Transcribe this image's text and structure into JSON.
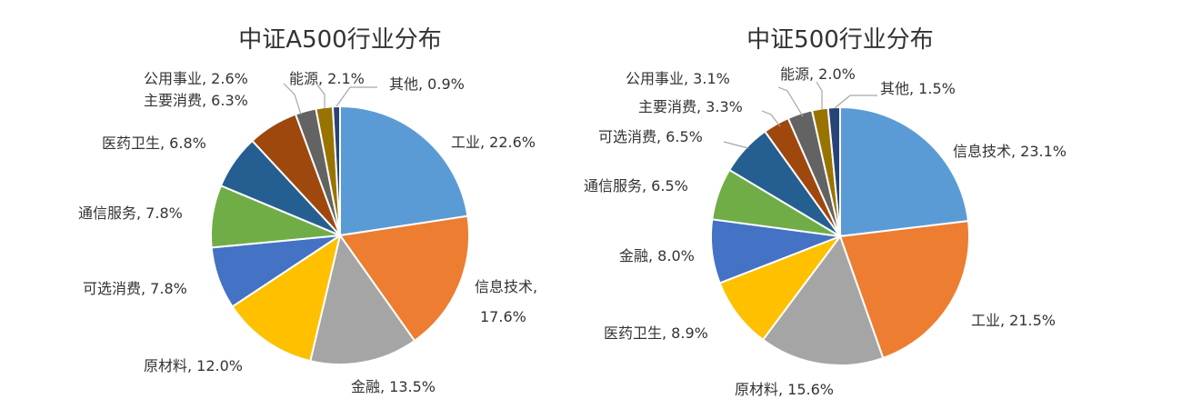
{
  "chart_data": [
    {
      "type": "pie",
      "title": "中证A500行业分布",
      "categories": [
        "工业",
        "信息技术",
        "金融",
        "原材料",
        "可选消费",
        "通信服务",
        "医药卫生",
        "主要消费",
        "公用事业",
        "能源",
        "其他"
      ],
      "values": [
        22.6,
        17.6,
        13.5,
        12.0,
        7.8,
        7.8,
        6.8,
        6.3,
        2.6,
        2.1,
        0.9
      ],
      "labels": [
        "工业, 22.6%",
        "信息技术,",
        "金融, 13.5%",
        "原材料, 12.0%",
        "可选消费, 7.8%",
        "通信服务, 7.8%",
        "医药卫生, 6.8%",
        "主要消费, 6.3%",
        "公用事业, 2.6%",
        "能源, 2.1%",
        "其他, 0.9%"
      ],
      "extra_labels": [
        "17.6%"
      ],
      "colors": [
        "#5b9bd5",
        "#ed7d31",
        "#a5a5a5",
        "#ffc000",
        "#4472c4",
        "#70ad47",
        "#255e91",
        "#9e480e",
        "#636363",
        "#997300",
        "#264478"
      ],
      "start": "12 o'clock",
      "direction": "clockwise",
      "legend": "none"
    },
    {
      "type": "pie",
      "title": "中证500行业分布",
      "categories": [
        "信息技术",
        "工业",
        "原材料",
        "医药卫生",
        "金融",
        "通信服务",
        "可选消费",
        "主要消费",
        "公用事业",
        "能源",
        "其他"
      ],
      "values": [
        23.1,
        21.5,
        15.6,
        8.9,
        8.0,
        6.5,
        6.5,
        3.3,
        3.1,
        2.0,
        1.5
      ],
      "labels": [
        "信息技术, 23.1%",
        "工业, 21.5%",
        "原材料, 15.6%",
        "医药卫生, 8.9%",
        "金融, 8.0%",
        "通信服务, 6.5%",
        "可选消费, 6.5%",
        "主要消费, 3.3%",
        "公用事业, 3.1%",
        "能源, 2.0%",
        "其他, 1.5%"
      ],
      "colors": [
        "#5b9bd5",
        "#ed7d31",
        "#a5a5a5",
        "#ffc000",
        "#4472c4",
        "#70ad47",
        "#255e91",
        "#9e480e",
        "#636363",
        "#997300",
        "#264478"
      ],
      "start": "12 o'clock",
      "direction": "clockwise",
      "legend": "none"
    }
  ]
}
